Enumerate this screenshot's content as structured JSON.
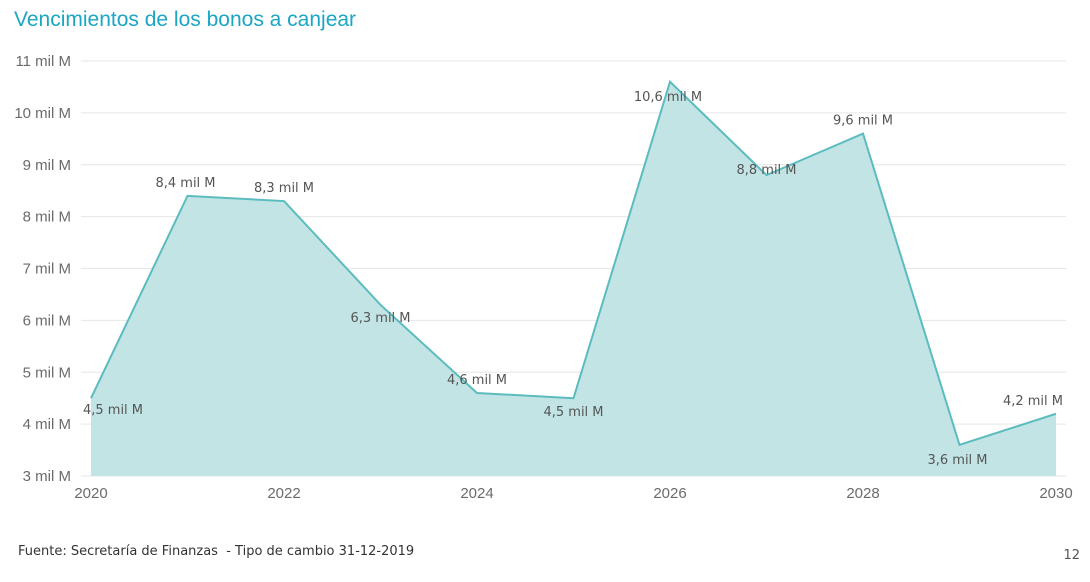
{
  "title": "Vencimientos de los bonos a canjear",
  "footer": "Fuente: Secretaría de Finanzas  - Tipo de cambio 31-12-2019",
  "page_number": "12",
  "colors": {
    "title": "#1ba6c4",
    "area_fill": "#c2e4e4",
    "line": "#5bbcbf",
    "grid": "#e6e6e6"
  },
  "chart_data": {
    "type": "area",
    "title": "Vencimientos de los bonos a canjear",
    "xlabel": "",
    "ylabel": "",
    "x": [
      2020,
      2021,
      2022,
      2023,
      2024,
      2025,
      2026,
      2027,
      2028,
      2029,
      2030
    ],
    "values": [
      4.5,
      8.4,
      8.3,
      6.3,
      4.6,
      4.5,
      10.6,
      8.8,
      9.6,
      3.6,
      4.2
    ],
    "data_labels": [
      "4,5 mil M",
      "8,4 mil M",
      "8,3 mil M",
      "6,3 mil M",
      "4,6 mil M",
      "4,5 mil M",
      "10,6 mil M",
      "8,8 mil M",
      "9,6 mil M",
      "3,6 mil M",
      "4,2 mil M"
    ],
    "xticks": [
      2020,
      2022,
      2024,
      2026,
      2028,
      2030
    ],
    "xtick_labels": [
      "2020",
      "2022",
      "2024",
      "2026",
      "2028",
      "2030"
    ],
    "yticks": [
      3,
      4,
      5,
      6,
      7,
      8,
      9,
      10,
      11
    ],
    "ytick_labels": [
      "3 mil M",
      "4 mil M",
      "5 mil M",
      "6 mil M",
      "7 mil M",
      "8 mil M",
      "9 mil M",
      "10 mil M",
      "11 mil M"
    ],
    "xlim": [
      2020,
      2030
    ],
    "ylim": [
      3,
      11
    ],
    "grid": true,
    "legend": "none"
  }
}
